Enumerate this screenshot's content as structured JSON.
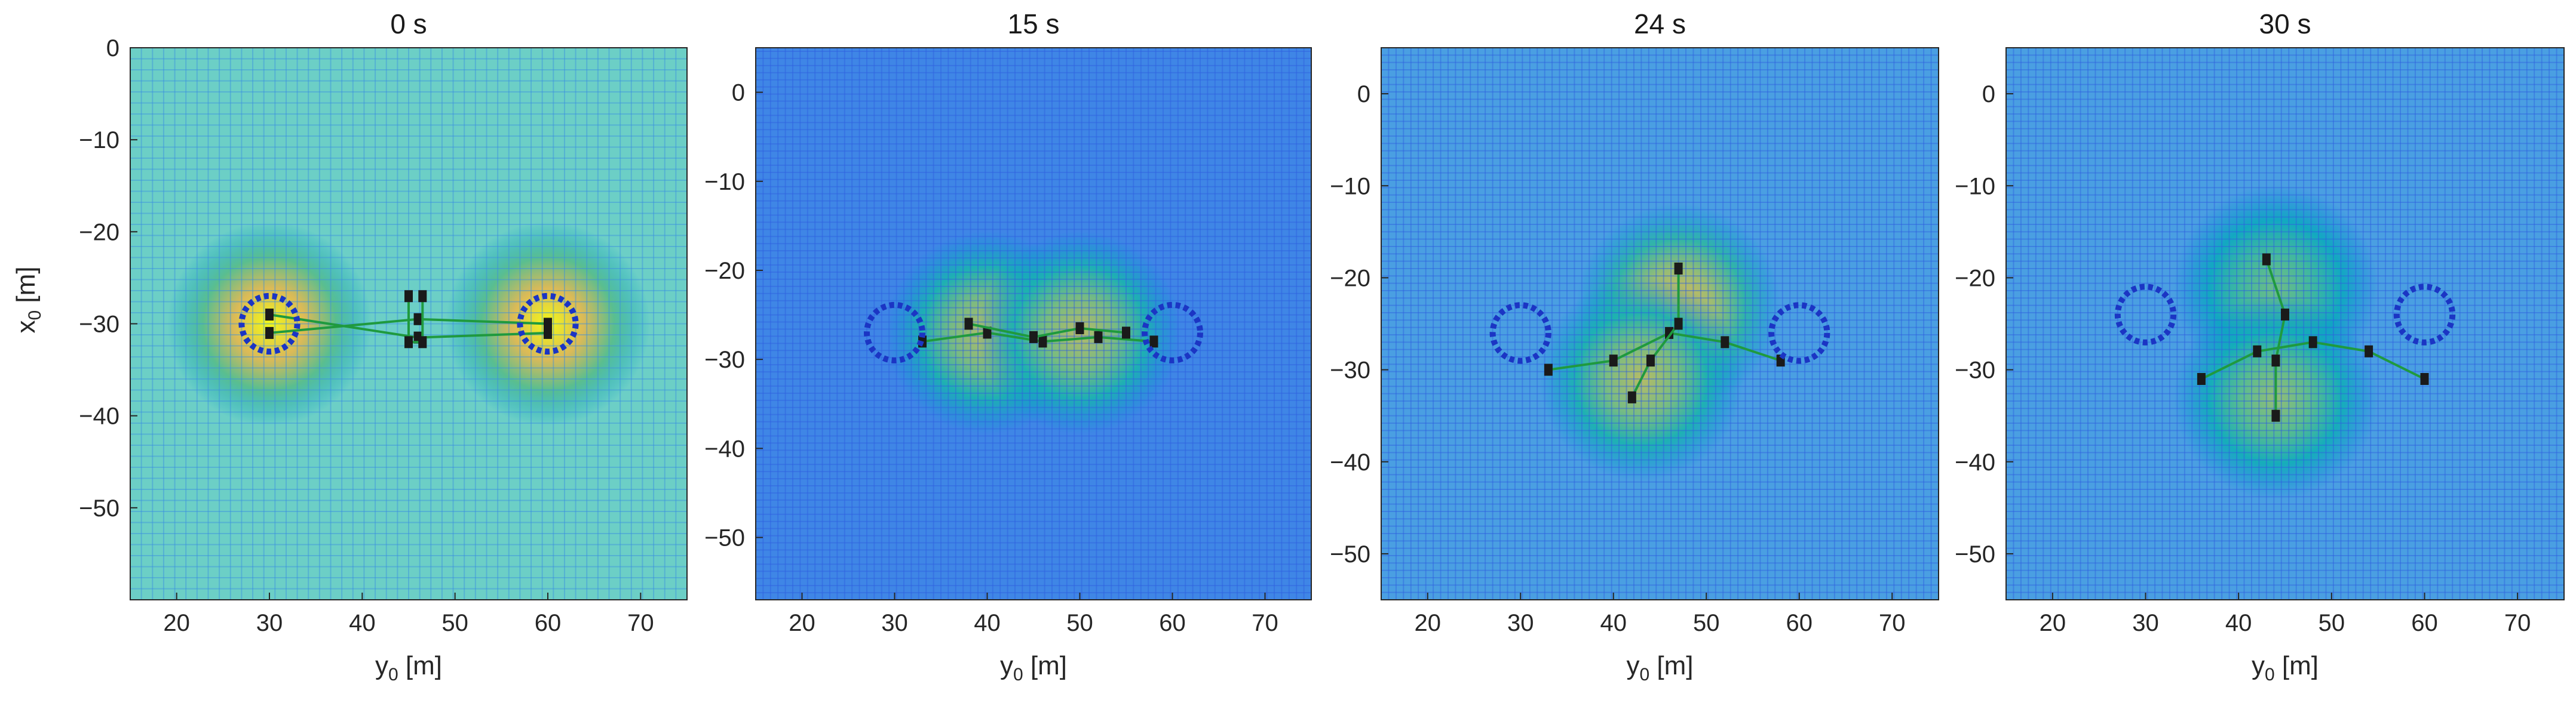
{
  "chart_data": [
    {
      "type": "heatmap",
      "title": "0 s",
      "xlabel": "y_0 [m]",
      "ylabel": "x_0 [m]",
      "xlim": [
        15,
        75
      ],
      "ylim": [
        -60,
        0
      ],
      "xticks": [
        20,
        30,
        40,
        50,
        60,
        70
      ],
      "xtick_labels": [
        "20",
        "30",
        "40",
        "50",
        "60",
        "70"
      ],
      "yticks": [
        0,
        -10,
        -20,
        -30,
        -40,
        -50
      ],
      "ytick_labels": [
        "0",
        "−10",
        "−20",
        "−30",
        "−40",
        "−50"
      ],
      "grid": true,
      "colormap": "parula",
      "hotspots": [
        {
          "x": 30,
          "y": -30,
          "level": 1.0
        },
        {
          "x": 60,
          "y": -30,
          "level": 1.0
        }
      ],
      "circles": [
        {
          "x": 30,
          "y": -30,
          "r": 3
        },
        {
          "x": 60,
          "y": -30,
          "r": 3
        }
      ],
      "traces": [
        {
          "points": [
            [
              30,
              -31
            ],
            [
              46,
              -29.5
            ],
            [
              60,
              -30
            ]
          ]
        },
        {
          "points": [
            [
              30,
              -29
            ],
            [
              46,
              -31.5
            ],
            [
              60,
              -31
            ]
          ]
        },
        {
          "points": [
            [
              45,
              -27
            ],
            [
              45,
              -32
            ],
            [
              46.5,
              -32
            ],
            [
              46.5,
              -27
            ]
          ]
        }
      ]
    },
    {
      "type": "heatmap",
      "title": "15 s",
      "xlabel": "y_0 [m]",
      "ylabel": "",
      "xlim": [
        15,
        75
      ],
      "ylim": [
        -57,
        5
      ],
      "xticks": [
        20,
        30,
        40,
        50,
        60,
        70
      ],
      "xtick_labels": [
        "20",
        "30",
        "40",
        "50",
        "60",
        "70"
      ],
      "yticks": [
        0,
        -10,
        -20,
        -30,
        -40,
        -50
      ],
      "ytick_labels": [
        "0",
        "−10",
        "−20",
        "−30",
        "−40",
        "−50"
      ],
      "grid": true,
      "colormap": "parula",
      "hotspots": [
        {
          "x": 40,
          "y": -27,
          "level": 0.85
        },
        {
          "x": 50,
          "y": -27,
          "level": 0.85
        }
      ],
      "circles": [
        {
          "x": 30,
          "y": -27,
          "r": 3
        },
        {
          "x": 60,
          "y": -27,
          "r": 3
        }
      ],
      "traces": [
        {
          "points": [
            [
              33,
              -28
            ],
            [
              40,
              -27
            ],
            [
              46,
              -28
            ],
            [
              52,
              -27.5
            ],
            [
              58,
              -28
            ]
          ]
        },
        {
          "points": [
            [
              38,
              -26
            ],
            [
              45,
              -27.5
            ],
            [
              50,
              -26.5
            ],
            [
              55,
              -27
            ]
          ]
        }
      ]
    },
    {
      "type": "heatmap",
      "title": "24 s",
      "xlabel": "y_0 [m]",
      "ylabel": "",
      "xlim": [
        15,
        75
      ],
      "ylim": [
        -55,
        5
      ],
      "xticks": [
        20,
        30,
        40,
        50,
        60,
        70
      ],
      "xtick_labels": [
        "20",
        "30",
        "40",
        "50",
        "60",
        "70"
      ],
      "yticks": [
        0,
        -10,
        -20,
        -30,
        -40,
        -50
      ],
      "ytick_labels": [
        "0",
        "−10",
        "−20",
        "−30",
        "−40",
        "−50"
      ],
      "grid": true,
      "colormap": "parula",
      "hotspots": [
        {
          "x": 47,
          "y": -23,
          "level": 0.9
        },
        {
          "x": 43,
          "y": -31,
          "level": 0.85
        }
      ],
      "circles": [
        {
          "x": 30,
          "y": -26,
          "r": 3
        },
        {
          "x": 60,
          "y": -26,
          "r": 3
        }
      ],
      "traces": [
        {
          "points": [
            [
              33,
              -30
            ],
            [
              40,
              -29
            ],
            [
              46,
              -26
            ],
            [
              52,
              -27
            ],
            [
              58,
              -29
            ]
          ]
        },
        {
          "points": [
            [
              47,
              -19
            ],
            [
              47,
              -25
            ],
            [
              44,
              -29
            ],
            [
              42,
              -33
            ]
          ]
        }
      ]
    },
    {
      "type": "heatmap",
      "title": "30 s",
      "xlabel": "y_0 [m]",
      "ylabel": "",
      "xlim": [
        15,
        75
      ],
      "ylim": [
        -55,
        5
      ],
      "xticks": [
        20,
        30,
        40,
        50,
        60,
        70
      ],
      "xtick_labels": [
        "20",
        "30",
        "40",
        "50",
        "60",
        "70"
      ],
      "yticks": [
        0,
        -10,
        -20,
        -30,
        -40,
        -50
      ],
      "ytick_labels": [
        "0",
        "−10",
        "−20",
        "−30",
        "−40",
        "−50"
      ],
      "grid": true,
      "colormap": "parula",
      "hotspots": [
        {
          "x": 44,
          "y": -21,
          "level": 0.75
        },
        {
          "x": 44,
          "y": -33,
          "level": 0.8
        }
      ],
      "circles": [
        {
          "x": 30,
          "y": -24,
          "r": 3
        },
        {
          "x": 60,
          "y": -24,
          "r": 3
        }
      ],
      "traces": [
        {
          "points": [
            [
              36,
              -31
            ],
            [
              42,
              -28
            ],
            [
              48,
              -27
            ],
            [
              54,
              -28
            ],
            [
              60,
              -31
            ]
          ]
        },
        {
          "points": [
            [
              43,
              -18
            ],
            [
              45,
              -24
            ],
            [
              44,
              -29
            ],
            [
              44,
              -35
            ]
          ]
        }
      ]
    }
  ]
}
